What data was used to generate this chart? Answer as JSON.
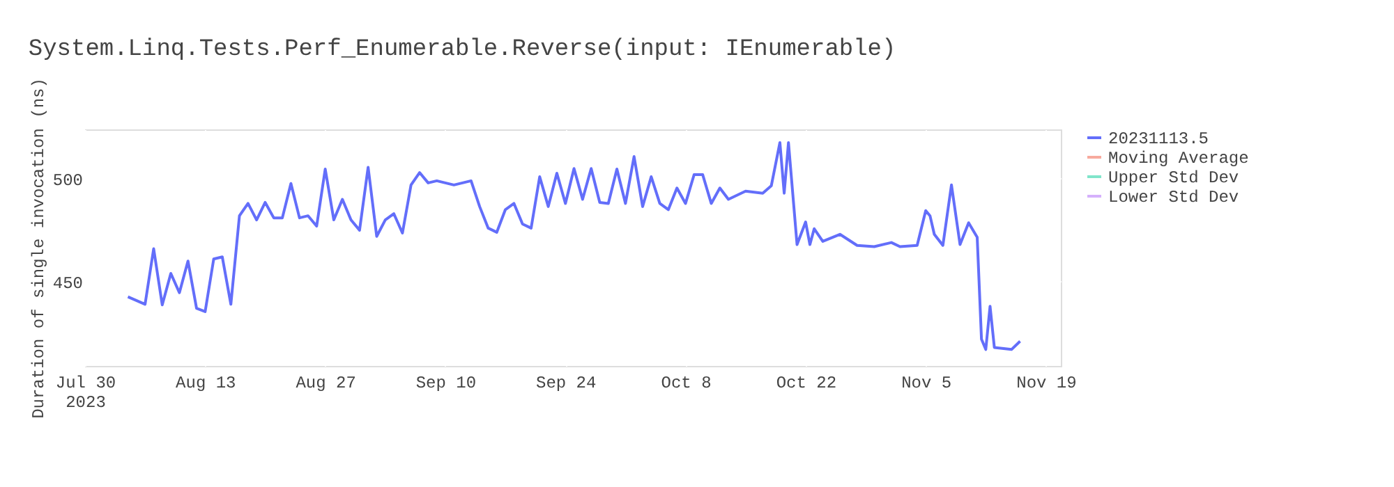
{
  "chart_data": {
    "type": "line",
    "title": "System.Linq.Tests.Perf_Enumerable.Reverse(input: IEnumerable)",
    "ylabel": "Duration of single invocation (ns)",
    "xlim": [
      "2023-07-30",
      "2023-11-20T18:00"
    ],
    "ylim": [
      409,
      524
    ],
    "yticks": [
      450,
      500
    ],
    "xticks": [
      {
        "value": "2023-07-30",
        "label": "Jul 30\n2023"
      },
      {
        "value": "2023-08-13",
        "label": "Aug 13"
      },
      {
        "value": "2023-08-27",
        "label": "Aug 27"
      },
      {
        "value": "2023-09-10",
        "label": "Sep 10"
      },
      {
        "value": "2023-09-24",
        "label": "Sep 24"
      },
      {
        "value": "2023-10-08",
        "label": "Oct 8"
      },
      {
        "value": "2023-10-22",
        "label": "Oct 22"
      },
      {
        "value": "2023-11-05",
        "label": "Nov 5"
      },
      {
        "value": "2023-11-19",
        "label": "Nov 19"
      }
    ],
    "grid": true,
    "legend": "top right",
    "line_style": "solid",
    "marker": "none",
    "x": [
      "2023-08-04",
      "2023-08-06",
      "2023-08-07",
      "2023-08-08",
      "2023-08-09",
      "2023-08-10",
      "2023-08-11",
      "2023-08-12",
      "2023-08-13",
      "2023-08-14",
      "2023-08-15",
      "2023-08-16",
      "2023-08-17",
      "2023-08-18",
      "2023-08-19",
      "2023-08-20",
      "2023-08-21",
      "2023-08-22",
      "2023-08-23",
      "2023-08-24",
      "2023-08-25",
      "2023-08-26",
      "2023-08-27",
      "2023-08-28",
      "2023-08-29",
      "2023-08-30",
      "2023-08-31",
      "2023-09-01",
      "2023-09-02",
      "2023-09-03",
      "2023-09-04",
      "2023-09-05",
      "2023-09-06",
      "2023-09-07",
      "2023-09-08",
      "2023-09-09",
      "2023-09-10",
      "2023-09-11",
      "2023-09-12",
      "2023-09-13",
      "2023-09-14",
      "2023-09-15",
      "2023-09-16",
      "2023-09-17",
      "2023-09-18",
      "2023-09-19",
      "2023-09-20",
      "2023-09-21",
      "2023-09-22",
      "2023-09-23",
      "2023-09-24",
      "2023-09-25",
      "2023-09-26",
      "2023-09-27",
      "2023-09-28",
      "2023-09-29",
      "2023-09-30",
      "2023-10-01",
      "2023-10-02",
      "2023-10-03",
      "2023-10-04",
      "2023-10-05",
      "2023-10-06",
      "2023-10-07",
      "2023-10-08",
      "2023-10-09",
      "2023-10-10",
      "2023-10-11",
      "2023-10-12",
      "2023-10-13",
      "2023-10-15",
      "2023-10-17",
      "2023-10-18",
      "2023-10-19",
      "2023-10-19T12:00",
      "2023-10-20",
      "2023-10-21",
      "2023-10-22",
      "2023-10-22T12:00",
      "2023-10-23",
      "2023-10-24",
      "2023-10-26",
      "2023-10-28",
      "2023-10-30",
      "2023-11-01",
      "2023-11-02",
      "2023-11-04",
      "2023-11-05",
      "2023-11-05T12:00",
      "2023-11-06",
      "2023-11-07",
      "2023-11-08",
      "2023-11-09",
      "2023-11-10",
      "2023-11-11",
      "2023-11-11T12:00",
      "2023-11-12",
      "2023-11-12T12:00",
      "2023-11-13",
      "2023-11-15",
      "2023-11-16"
    ],
    "series": [
      {
        "name": "20231113.5",
        "color": "#636efa",
        "values": [
          442.6,
          439,
          466,
          438.7,
          454,
          444.6,
          460,
          437,
          435.4,
          461,
          462,
          439,
          482,
          488,
          480,
          488.5,
          481,
          481,
          497.7,
          481,
          482,
          477,
          504.7,
          480,
          490,
          480,
          475,
          505.6,
          472,
          480,
          483,
          473.6,
          497,
          503,
          498,
          499,
          498,
          497,
          498,
          499,
          486.5,
          476,
          474,
          485,
          488,
          478,
          476,
          501,
          486.5,
          502.7,
          488,
          505,
          490,
          505,
          488.5,
          488,
          504.7,
          488,
          510.8,
          486.5,
          501,
          488,
          485,
          495.5,
          488,
          502,
          502,
          488,
          495.5,
          490,
          494,
          493,
          496.6,
          517.6,
          493,
          517.6,
          468,
          479,
          468,
          475.7,
          469.6,
          473,
          467.6,
          467,
          469,
          467,
          467.6,
          484.5,
          482,
          473,
          467.6,
          497,
          468,
          478.6,
          471.6,
          422,
          417,
          438,
          418,
          417,
          421
        ]
      },
      {
        "name": "Moving Average",
        "color": "#f7aa9d",
        "values": [
          null,
          null,
          null,
          null,
          null,
          null,
          null,
          null,
          null,
          null,
          null,
          null,
          null,
          null,
          null,
          null,
          null,
          null,
          null,
          null,
          null,
          null,
          null,
          null,
          null,
          null,
          null,
          null,
          null,
          null,
          null,
          null,
          null,
          null,
          null,
          null,
          null,
          null,
          null,
          null,
          null,
          null,
          null,
          null,
          null,
          null,
          null,
          null,
          null,
          null,
          null,
          null,
          null,
          null,
          null,
          null,
          null,
          null,
          null,
          null,
          null,
          null,
          null,
          null,
          null,
          null,
          null,
          null,
          null,
          null,
          null,
          null,
          null,
          null,
          null,
          null,
          null,
          null,
          null,
          null,
          null,
          null,
          null,
          null,
          null,
          null,
          null,
          null,
          null,
          null,
          null,
          null,
          null,
          null,
          null,
          null,
          null,
          null,
          null,
          null,
          null
        ]
      },
      {
        "name": "Upper Std Dev",
        "color": "#80e5ca",
        "values": [
          null,
          null,
          null,
          null,
          null,
          null,
          null,
          null,
          null,
          null,
          null,
          null,
          null,
          null,
          null,
          null,
          null,
          null,
          null,
          null,
          null,
          null,
          null,
          null,
          null,
          null,
          null,
          null,
          null,
          null,
          null,
          null,
          null,
          null,
          null,
          null,
          null,
          null,
          null,
          null,
          null,
          null,
          null,
          null,
          null,
          null,
          null,
          null,
          null,
          null,
          null,
          null,
          null,
          null,
          null,
          null,
          null,
          null,
          null,
          null,
          null,
          null,
          null,
          null,
          null,
          null,
          null,
          null,
          null,
          null,
          null,
          null,
          null,
          null,
          null,
          null,
          null,
          null,
          null,
          null,
          null,
          null,
          null,
          null,
          null,
          null,
          null,
          null,
          null,
          null,
          null,
          null,
          null,
          null,
          null,
          null,
          null,
          null,
          null,
          null,
          null
        ]
      },
      {
        "name": "Lower Std Dev",
        "color": "#d5b1fc",
        "values": [
          null,
          null,
          null,
          null,
          null,
          null,
          null,
          null,
          null,
          null,
          null,
          null,
          null,
          null,
          null,
          null,
          null,
          null,
          null,
          null,
          null,
          null,
          null,
          null,
          null,
          null,
          null,
          null,
          null,
          null,
          null,
          null,
          null,
          null,
          null,
          null,
          null,
          null,
          null,
          null,
          null,
          null,
          null,
          null,
          null,
          null,
          null,
          null,
          null,
          null,
          null,
          null,
          null,
          null,
          null,
          null,
          null,
          null,
          null,
          null,
          null,
          null,
          null,
          null,
          null,
          null,
          null,
          null,
          null,
          null,
          null,
          null,
          null,
          null,
          null,
          null,
          null,
          null,
          null,
          null,
          null,
          null,
          null,
          null,
          null,
          null,
          null,
          null,
          null,
          null,
          null,
          null,
          null,
          null,
          null,
          null,
          null,
          null,
          null,
          null,
          null
        ]
      }
    ]
  }
}
